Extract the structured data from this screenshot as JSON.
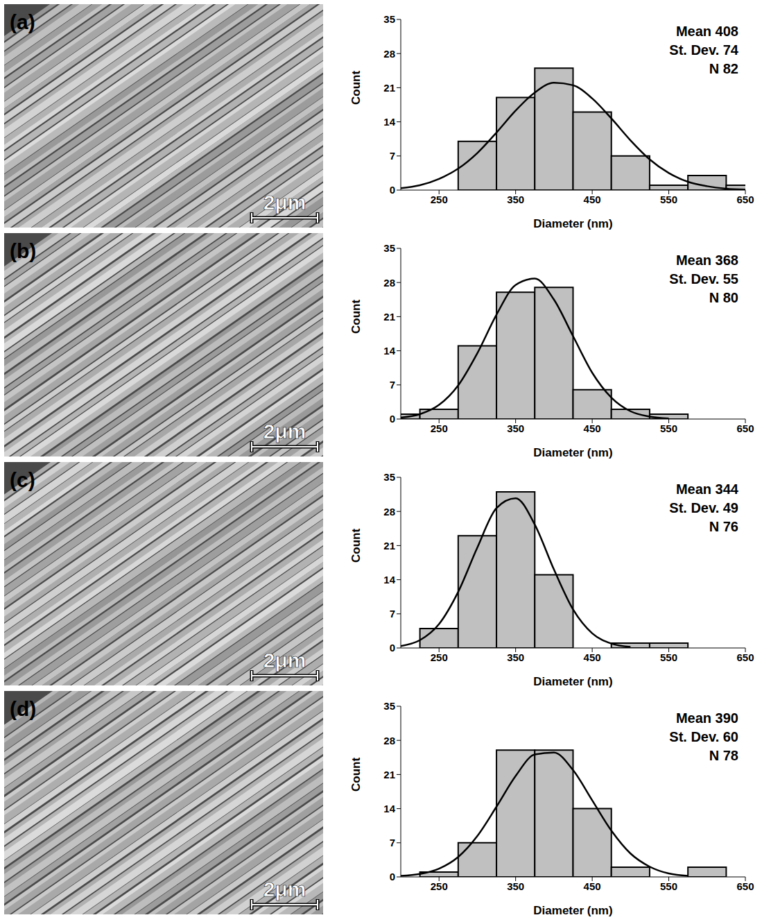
{
  "chart_data": [
    {
      "type": "histogram",
      "image_label": "(a)",
      "scale_bar": "2μm",
      "xlabel": "Diameter (nm)",
      "ylabel": "Count",
      "annotations": [
        "Mean 408",
        "St. Dev. 74",
        "N 82"
      ],
      "bins": [
        175,
        225,
        275,
        325,
        375,
        425,
        475,
        525,
        575,
        625,
        675
      ],
      "values": [
        0,
        0,
        10,
        19,
        25,
        16,
        7,
        1,
        3,
        1
      ],
      "color": "#c0c0c0",
      "fit": {
        "type": "line",
        "color": "#000000",
        "x": [
          200,
          225,
          250,
          275,
          300,
          325,
          350,
          375,
          400,
          425,
          450,
          475,
          500,
          525,
          550,
          575,
          600,
          625,
          650
        ],
        "values": [
          0.4,
          1.0,
          2.3,
          4.4,
          7.6,
          11.8,
          16.3,
          20.0,
          22.0,
          21.5,
          18.8,
          14.7,
          10.2,
          6.3,
          3.5,
          1.7,
          0.8,
          0.3,
          0.1
        ]
      },
      "xlim": [
        200,
        650
      ],
      "xticks": [
        250,
        350,
        450,
        550,
        650
      ],
      "ylim": [
        0,
        35
      ],
      "yticks": [
        0,
        7,
        14,
        21,
        28,
        35
      ]
    },
    {
      "type": "histogram",
      "image_label": "(b)",
      "scale_bar": "2μm",
      "xlabel": "Diameter (nm)",
      "ylabel": "Count",
      "annotations": [
        "Mean 368",
        "St. Dev. 55",
        "N 80"
      ],
      "bins": [
        175,
        225,
        275,
        325,
        375,
        425,
        475,
        525,
        575,
        625,
        675
      ],
      "values": [
        1,
        2,
        15,
        26,
        27,
        6,
        2,
        1,
        0,
        0
      ],
      "color": "#c0c0c0",
      "fit": {
        "type": "line",
        "color": "#000000",
        "x": [
          200,
          225,
          250,
          275,
          300,
          325,
          350,
          375,
          400,
          425,
          450,
          475,
          500,
          525,
          550,
          575,
          600,
          625,
          650
        ],
        "values": [
          0.3,
          1.0,
          2.9,
          6.9,
          13.5,
          21.4,
          27.5,
          28.8,
          24.5,
          17.0,
          9.5,
          4.4,
          1.6,
          0.5,
          0.1,
          null,
          null,
          null,
          null
        ]
      },
      "xlim": [
        200,
        650
      ],
      "xticks": [
        250,
        350,
        450,
        550,
        650
      ],
      "ylim": [
        0,
        35
      ],
      "yticks": [
        0,
        7,
        14,
        21,
        28,
        35
      ]
    },
    {
      "type": "histogram",
      "image_label": "(c)",
      "scale_bar": "2μm",
      "xlabel": "Diameter (nm)",
      "ylabel": "Count",
      "annotations": [
        "Mean 344",
        "St. Dev. 49",
        "N 76"
      ],
      "bins": [
        175,
        225,
        275,
        325,
        375,
        425,
        475,
        525,
        575,
        625,
        675
      ],
      "values": [
        0,
        4,
        23,
        32,
        15,
        0,
        1,
        1,
        0,
        0
      ],
      "color": "#c0c0c0",
      "fit": {
        "type": "line",
        "color": "#000000",
        "x": [
          200,
          225,
          250,
          275,
          300,
          325,
          350,
          375,
          400,
          425,
          450,
          475,
          500,
          525,
          550,
          575,
          600,
          625,
          650
        ],
        "values": [
          0.4,
          1.6,
          4.9,
          11.5,
          20.6,
          28.7,
          30.7,
          25.3,
          16.1,
          7.9,
          3.0,
          0.9,
          0.2,
          null,
          null,
          null,
          null,
          null,
          null
        ]
      },
      "xlim": [
        200,
        650
      ],
      "xticks": [
        250,
        350,
        450,
        550,
        650
      ],
      "ylim": [
        0,
        35
      ],
      "yticks": [
        0,
        7,
        14,
        21,
        28,
        35
      ]
    },
    {
      "type": "histogram",
      "image_label": "(d)",
      "scale_bar": "2μm",
      "xlabel": "Diameter (nm)",
      "ylabel": "Count",
      "annotations": [
        "Mean 390",
        "St. Dev. 60",
        "N 78"
      ],
      "bins": [
        175,
        225,
        275,
        325,
        375,
        425,
        475,
        525,
        575,
        625,
        675
      ],
      "values": [
        0,
        1,
        7,
        26,
        26,
        14,
        2,
        0,
        2,
        0
      ],
      "color": "#c0c0c0",
      "fit": {
        "type": "line",
        "color": "#000000",
        "x": [
          200,
          225,
          250,
          275,
          300,
          325,
          350,
          375,
          400,
          425,
          450,
          475,
          500,
          525,
          550,
          575,
          600,
          625,
          650
        ],
        "values": [
          0.2,
          0.6,
          1.7,
          4.1,
          8.4,
          14.4,
          20.7,
          25.1,
          25.5,
          21.9,
          15.7,
          9.5,
          4.8,
          2.1,
          0.7,
          0.2,
          null,
          null,
          null
        ]
      },
      "xlim": [
        200,
        650
      ],
      "xticks": [
        250,
        350,
        450,
        550,
        650
      ],
      "ylim": [
        0,
        35
      ],
      "yticks": [
        0,
        7,
        14,
        21,
        28,
        35
      ]
    }
  ]
}
